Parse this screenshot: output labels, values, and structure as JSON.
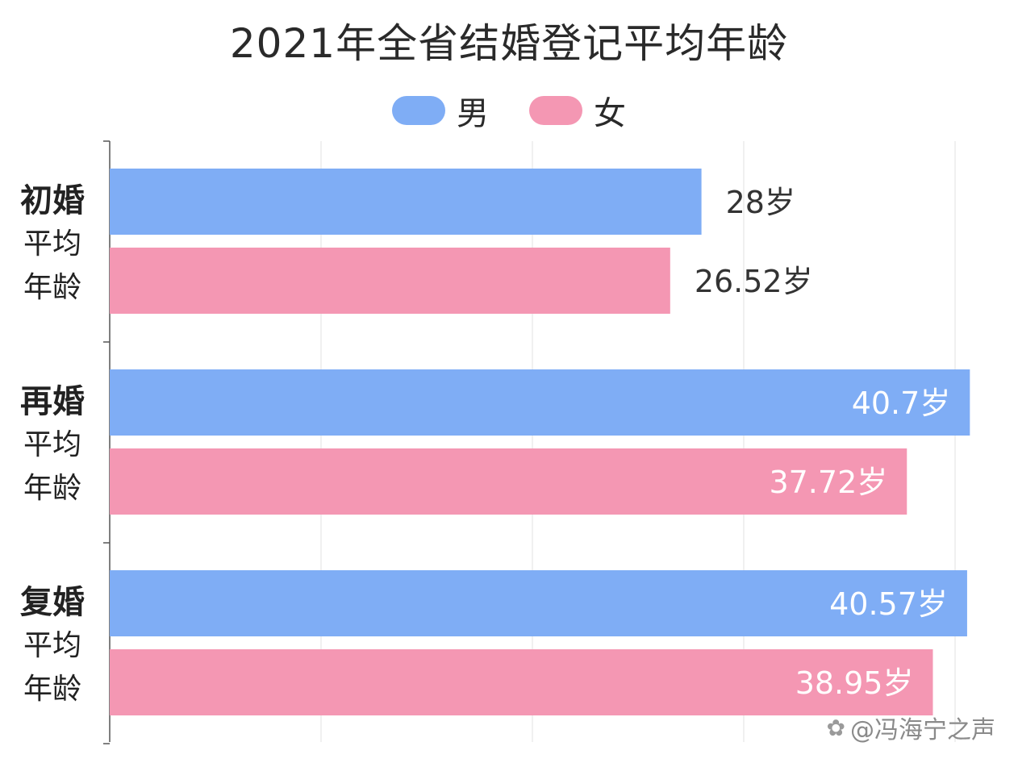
{
  "chart_data": {
    "type": "bar",
    "orientation": "horizontal",
    "title": "2021年全省结婚登记平均年龄",
    "categories": [
      {
        "main": "初婚",
        "sub1": "平均",
        "sub2": "年龄"
      },
      {
        "main": "再婚",
        "sub1": "平均",
        "sub2": "年龄"
      },
      {
        "main": "复婚",
        "sub1": "平均",
        "sub2": "年龄"
      }
    ],
    "series": [
      {
        "name": "男",
        "color": "#7fadf5",
        "values": [
          28,
          40.7,
          40.57
        ],
        "labels": [
          "28岁",
          "40.7岁",
          "40.57岁"
        ]
      },
      {
        "name": "女",
        "color": "#f497b3",
        "values": [
          26.52,
          37.72,
          38.95
        ],
        "labels": [
          "26.52岁",
          "37.72岁",
          "38.95岁"
        ]
      }
    ],
    "xlim": [
      0,
      41
    ],
    "grid": true,
    "legend_position": "top-center"
  },
  "watermark": {
    "text": "@冯海宁之声",
    "icon": "weibo-icon"
  }
}
